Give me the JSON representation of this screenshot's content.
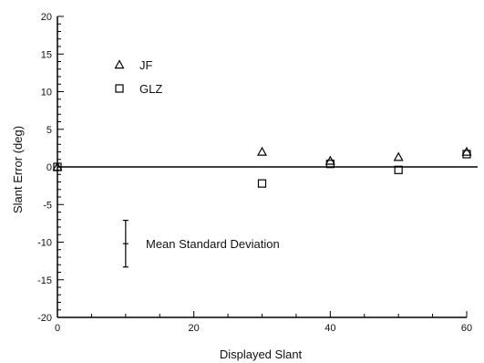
{
  "chart_data": {
    "type": "scatter",
    "title": "",
    "xlabel": "Displayed Slant",
    "ylabel": "Slant Error (deg)",
    "xlim": [
      0,
      60
    ],
    "ylim": [
      -20,
      20
    ],
    "x_ticks": [
      0,
      20,
      40,
      60
    ],
    "x_tick_labels": [
      "0",
      "20",
      "40",
      "60"
    ],
    "y_ticks": [
      20,
      15,
      10,
      5,
      0,
      -5,
      -10,
      -15,
      -20
    ],
    "y_tick_labels": [
      "20",
      "15",
      "10",
      "5",
      "0",
      "-5",
      "-10",
      "-15",
      "-20"
    ],
    "grid": false,
    "reference_line_y": 0,
    "legend_position": "top-left",
    "series": [
      {
        "name": "JF",
        "marker": "triangle",
        "x": [
          0,
          30,
          40,
          50,
          60
        ],
        "y": [
          0,
          2,
          0.8,
          1.3,
          2
        ]
      },
      {
        "name": "GLZ",
        "marker": "square",
        "x": [
          0,
          30,
          40,
          50,
          60
        ],
        "y": [
          0,
          -2.2,
          0.4,
          -0.4,
          1.7
        ]
      }
    ],
    "annotations": [
      {
        "text": "Mean Standard Deviation",
        "error_bar": {
          "x": 10,
          "center": -10.2,
          "low": -13.3,
          "high": -7.1
        }
      }
    ]
  }
}
